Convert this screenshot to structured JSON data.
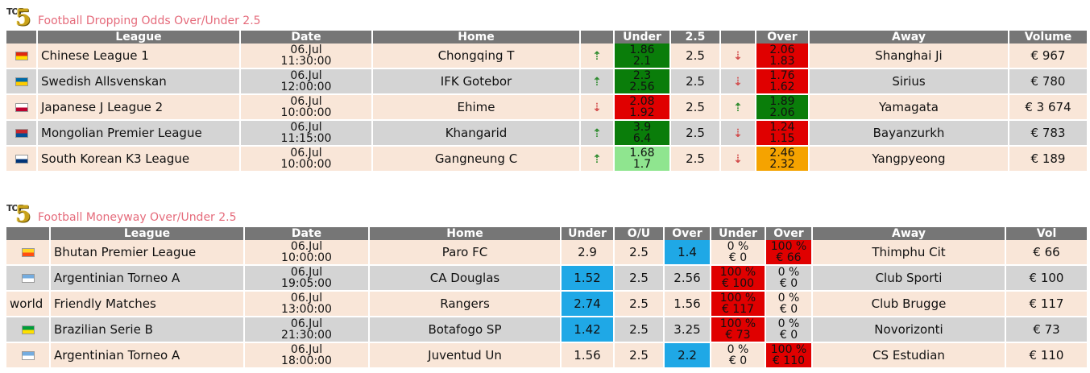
{
  "section1": {
    "logo_top": "TOP",
    "logo_num": "5",
    "title": "Football Dropping Odds Over/Under 2.5",
    "headers": [
      "League",
      "Date",
      "Home",
      "",
      "Under",
      "2.5",
      "",
      "Over",
      "Away",
      "Volume"
    ],
    "rows": [
      {
        "flag": "china-flag-icon",
        "flag_colors": [
          "#de2910",
          "#ffde00"
        ],
        "league": "Chinese League 1",
        "date1": "06.Jul",
        "date2": "11:30:00",
        "home": "Chongqing T",
        "ua": "up",
        "u1": "1.86",
        "u2": "2.1",
        "ucolor": "#0a7d0a",
        "line": "2.5",
        "oa": "down",
        "o1": "2.06",
        "o2": "1.83",
        "ocolor": "#e00000",
        "away": "Shanghai Ji",
        "vol": "€ 967"
      },
      {
        "flag": "sweden-flag-icon",
        "flag_colors": [
          "#006aa7",
          "#fecc00"
        ],
        "league": "Swedish Allsvenskan",
        "date1": "06.Jul",
        "date2": "12:00:00",
        "home": "IFK Gotebor",
        "ua": "up",
        "u1": "2.3",
        "u2": "2.56",
        "ucolor": "#0a7d0a",
        "line": "2.5",
        "oa": "down",
        "o1": "1.76",
        "o2": "1.62",
        "ocolor": "#e00000",
        "away": "Sirius",
        "vol": "€ 780"
      },
      {
        "flag": "japan-flag-icon",
        "flag_colors": [
          "#ffffff",
          "#bc002d"
        ],
        "league": "Japanese J League 2",
        "date1": "06.Jul",
        "date2": "10:00:00",
        "home": "Ehime",
        "ua": "down",
        "u1": "2.08",
        "u2": "1.92",
        "ucolor": "#e00000",
        "line": "2.5",
        "oa": "up",
        "o1": "1.89",
        "o2": "2.06",
        "ocolor": "#0a7d0a",
        "away": "Yamagata",
        "vol": "€ 3 674"
      },
      {
        "flag": "mongolia-flag-icon",
        "flag_colors": [
          "#c4272f",
          "#015197"
        ],
        "league": "Mongolian Premier League",
        "date1": "06.Jul",
        "date2": "11:15:00",
        "home": "Khangarid",
        "ua": "up",
        "u1": "3.9",
        "u2": "6.4",
        "ucolor": "#0a7d0a",
        "line": "2.5",
        "oa": "down",
        "o1": "1.24",
        "o2": "1.15",
        "ocolor": "#e00000",
        "away": "Bayanzurkh",
        "vol": "€ 783"
      },
      {
        "flag": "south-korea-flag-icon",
        "flag_colors": [
          "#ffffff",
          "#003478"
        ],
        "league": "South Korean K3 League",
        "date1": "06.Jul",
        "date2": "10:00:00",
        "home": "Gangneung C",
        "ua": "up",
        "u1": "1.68",
        "u2": "1.7",
        "ucolor": "#8fe58f",
        "line": "2.5",
        "oa": "down",
        "o1": "2.46",
        "o2": "2.32",
        "ocolor": "#f5a300",
        "away": "Yangpyeong",
        "vol": "€ 189"
      }
    ]
  },
  "section2": {
    "logo_top": "TOP",
    "logo_num": "5",
    "title": "Football Moneyway Over/Under 2.5",
    "headers": [
      "League",
      "Date",
      "Home",
      "Under",
      "O/U",
      "Over",
      "Under",
      "Over",
      "Away",
      "Vol"
    ],
    "rows": [
      {
        "flag": "bhutan-flag-icon",
        "flag_colors": [
          "#ffd520",
          "#ff4e12"
        ],
        "league": "Bhutan Premier League",
        "date1": "06.Jul",
        "date2": "10:00:00",
        "home": "Paro FC",
        "under": "2.9",
        "line": "2.5",
        "over": "1.4",
        "hl": "over",
        "mu1": "0 %",
        "mu2": "€ 0",
        "mo1": "100 %",
        "mo2": "€ 66",
        "mhl": "over",
        "away": "Thimphu Cit",
        "vol": "€ 66"
      },
      {
        "flag": "argentina-flag-icon",
        "flag_colors": [
          "#74acdf",
          "#ffffff"
        ],
        "league": "Argentinian Torneo A",
        "date1": "06.Jul",
        "date2": "19:05:00",
        "home": "CA Douglas",
        "under": "1.52",
        "line": "2.5",
        "over": "2.56",
        "hl": "under",
        "mu1": "100 %",
        "mu2": "€ 100",
        "mo1": "0 %",
        "mo2": "€ 0",
        "mhl": "under",
        "away": "Club Sporti",
        "vol": "€ 100"
      },
      {
        "flag": "",
        "flag_text": "world",
        "flag_colors": [],
        "league": "Friendly Matches",
        "date1": "06.Jul",
        "date2": "13:00:00",
        "home": "Rangers",
        "under": "2.74",
        "line": "2.5",
        "over": "1.56",
        "hl": "under",
        "mu1": "100 %",
        "mu2": "€ 117",
        "mo1": "0 %",
        "mo2": "€ 0",
        "mhl": "under",
        "away": "Club Brugge",
        "vol": "€ 117"
      },
      {
        "flag": "brazil-flag-icon",
        "flag_colors": [
          "#009c3b",
          "#ffdf00"
        ],
        "league": "Brazilian Serie B",
        "date1": "06.Jul",
        "date2": "21:30:00",
        "home": "Botafogo SP",
        "under": "1.42",
        "line": "2.5",
        "over": "3.25",
        "hl": "under",
        "mu1": "100 %",
        "mu2": "€ 73",
        "mo1": "0 %",
        "mo2": "€ 0",
        "mhl": "under",
        "away": "Novorizonti",
        "vol": "€ 73"
      },
      {
        "flag": "argentina-flag-icon",
        "flag_colors": [
          "#74acdf",
          "#ffffff"
        ],
        "league": "Argentinian Torneo A",
        "date1": "06.Jul",
        "date2": "18:00:00",
        "home": "Juventud Un",
        "under": "1.56",
        "line": "2.5",
        "over": "2.2",
        "hl": "over",
        "mu1": "0 %",
        "mu2": "€ 0",
        "mo1": "100 %",
        "mo2": "€ 110",
        "mhl": "over",
        "away": "CS Estudian",
        "vol": "€ 110"
      }
    ]
  },
  "colors": {
    "header_bg": "#767676",
    "row_odd": "#f9e6d8",
    "row_even": "#d4d4d4",
    "title": "#e56b7b",
    "blue": "#1fa8e6",
    "red": "#e00000",
    "green": "#0a7d0a"
  }
}
